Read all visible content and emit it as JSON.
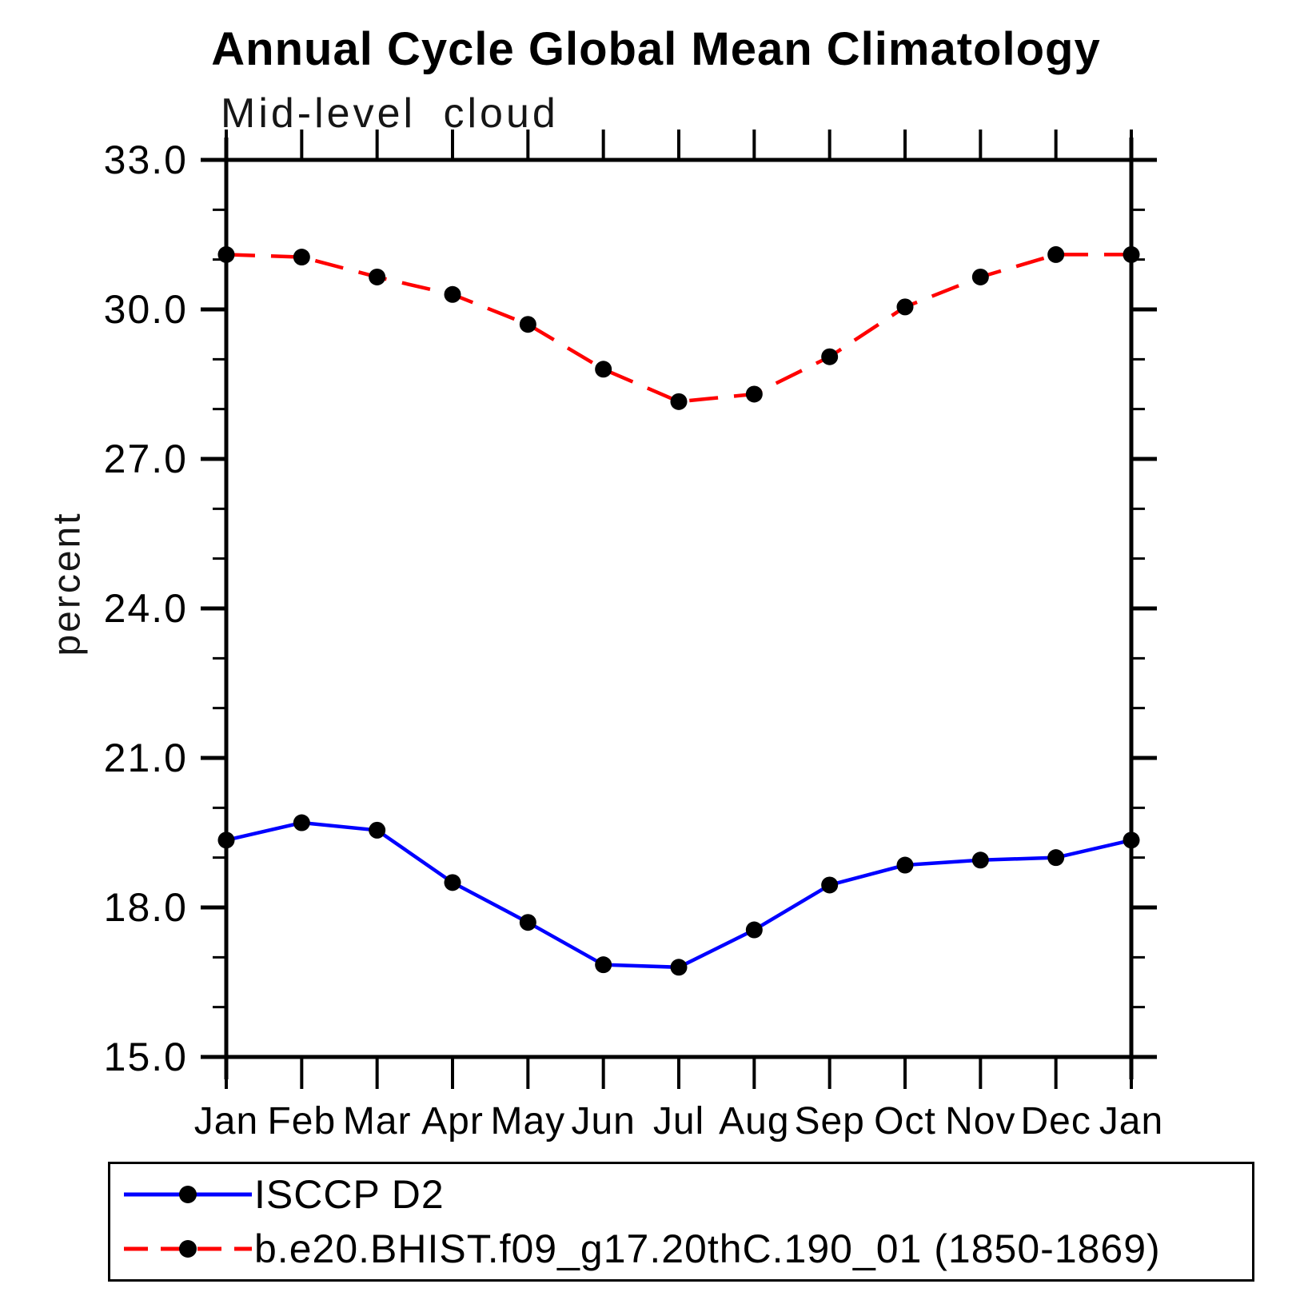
{
  "figure": {
    "title": "Annual Cycle Global Mean Climatology",
    "subtitle": "Mid-level cloud"
  },
  "chart_data": {
    "type": "line",
    "title": "Annual Cycle Global Mean Climatology",
    "subtitle": "Mid-level cloud",
    "xlabel": "",
    "ylabel": "percent",
    "x_categories": [
      "Jan",
      "Feb",
      "Mar",
      "Apr",
      "May",
      "Jun",
      "Jul",
      "Aug",
      "Sep",
      "Oct",
      "Nov",
      "Dec",
      "Jan"
    ],
    "ylim": [
      15.0,
      33.0
    ],
    "ytick_major": [
      15.0,
      18.0,
      21.0,
      24.0,
      27.0,
      30.0,
      33.0
    ],
    "ytick_labels": [
      "15.0",
      "18.0",
      "21.0",
      "24.0",
      "27.0",
      "30.0",
      "33.0"
    ],
    "ytick_minor_step": 1.0,
    "grid": false,
    "legend_position": "bottom-left-box",
    "axis_color": "#000000",
    "marker": "filled-circle",
    "marker_color": "#000000",
    "series": [
      {
        "name": "ISCCP D2",
        "line_color": "#0000ff",
        "line_style": "solid",
        "values": [
          19.35,
          19.7,
          19.55,
          18.5,
          17.7,
          16.85,
          16.8,
          17.55,
          18.45,
          18.85,
          18.95,
          19.0,
          19.35
        ]
      },
      {
        "name": "b.e20.BHIST.f09_g17.20thC.190_01 (1850-1869)",
        "line_color": "#ff0000",
        "line_style": "dashed",
        "values": [
          31.1,
          31.05,
          30.65,
          30.3,
          29.7,
          28.8,
          28.15,
          28.3,
          29.05,
          30.05,
          30.65,
          31.1,
          31.1
        ]
      }
    ]
  }
}
